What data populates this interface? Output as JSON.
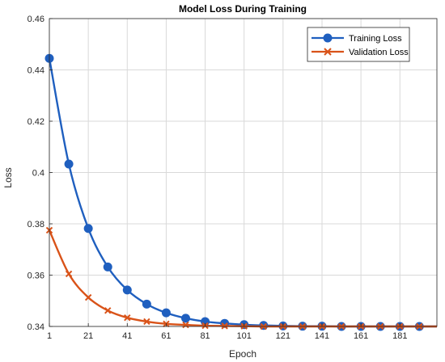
{
  "chart_data": {
    "type": "line",
    "title": "Model Loss During Training",
    "xlabel": "Epoch",
    "ylabel": "Loss",
    "xlim": [
      1,
      200
    ],
    "ylim": [
      0.34,
      0.46
    ],
    "xticks": [
      1,
      21,
      41,
      61,
      81,
      101,
      121,
      141,
      161,
      181
    ],
    "yticks": [
      0.34,
      0.36,
      0.38,
      0.4,
      0.42,
      0.44,
      0.46
    ],
    "xtick_labels": [
      "1",
      "21",
      "41",
      "61",
      "81",
      "101",
      "121",
      "141",
      "161",
      "181"
    ],
    "ytick_labels": [
      "0.34",
      "0.36",
      "0.38",
      "0.4",
      "0.42",
      "0.44",
      "0.46"
    ],
    "grid": true,
    "legend_position": "top-right",
    "series": [
      {
        "name": "Training Loss",
        "color": "#1f5fbf",
        "marker": "circle",
        "x": [
          1,
          11,
          21,
          31,
          41,
          51,
          61,
          71,
          81,
          91,
          101,
          111,
          121,
          131,
          141,
          151,
          161,
          171,
          181,
          191
        ],
        "y": [
          0.4445,
          0.4033,
          0.3782,
          0.3632,
          0.3542,
          0.3487,
          0.3453,
          0.3432,
          0.3419,
          0.3412,
          0.3407,
          0.3404,
          0.3402,
          0.3401,
          0.3401,
          0.34,
          0.34,
          0.34,
          0.34,
          0.34
        ]
      },
      {
        "name": "Validation Loss",
        "color": "#d95319",
        "marker": "x",
        "x": [
          1,
          11,
          21,
          31,
          41,
          51,
          61,
          71,
          81,
          91,
          101,
          111,
          121,
          131,
          141,
          151,
          161,
          171,
          181,
          191
        ],
        "y": [
          0.3775,
          0.3605,
          0.3513,
          0.3462,
          0.3434,
          0.3419,
          0.341,
          0.3406,
          0.3403,
          0.3402,
          0.3401,
          0.34,
          0.34,
          0.34,
          0.34,
          0.34,
          0.34,
          0.34,
          0.34,
          0.34
        ]
      }
    ]
  }
}
